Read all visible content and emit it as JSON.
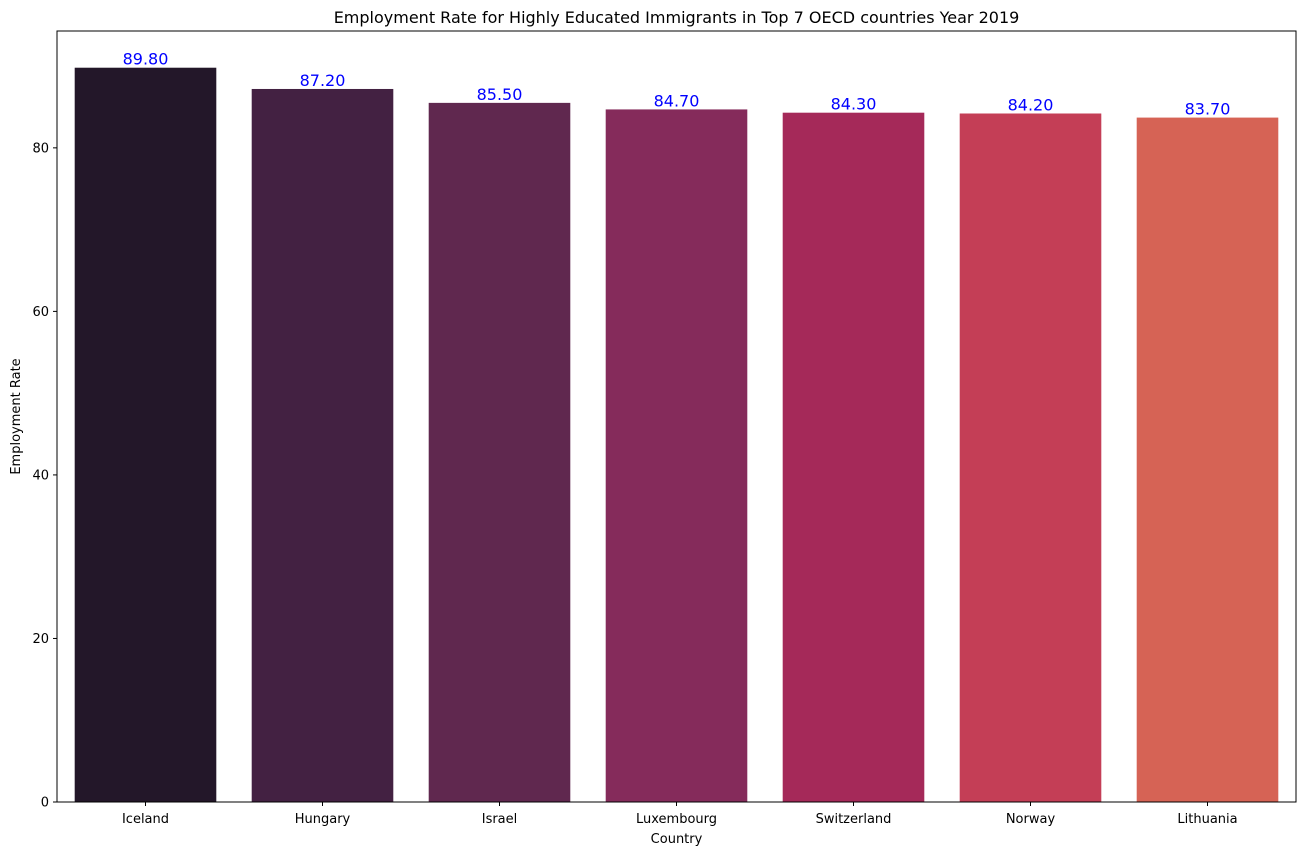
{
  "chart_data": {
    "type": "bar",
    "title": "Employment Rate for Highly Educated Immigrants in Top 7 OECD countries Year 2019",
    "xlabel": "Country",
    "ylabel": "Employment Rate",
    "categories": [
      "Iceland",
      "Hungary",
      "Israel",
      "Luxembourg",
      "Switzerland",
      "Norway",
      "Lithuania"
    ],
    "values": [
      89.8,
      87.2,
      85.5,
      84.7,
      84.3,
      84.2,
      83.7
    ],
    "value_labels": [
      "89.80",
      "87.20",
      "85.50",
      "84.70",
      "84.30",
      "84.20",
      "83.70"
    ],
    "colors": [
      "#231729",
      "#432142",
      "#60284f",
      "#852b5b",
      "#a52959",
      "#c43e56",
      "#d66355"
    ],
    "label_color": "#0000ff",
    "ylim": [
      0,
      94.29
    ],
    "yticks": [
      0,
      20,
      40,
      60,
      80
    ],
    "ytick_labels": [
      "0",
      "20",
      "40",
      "60",
      "80"
    ],
    "grid": false,
    "legend": "none"
  }
}
